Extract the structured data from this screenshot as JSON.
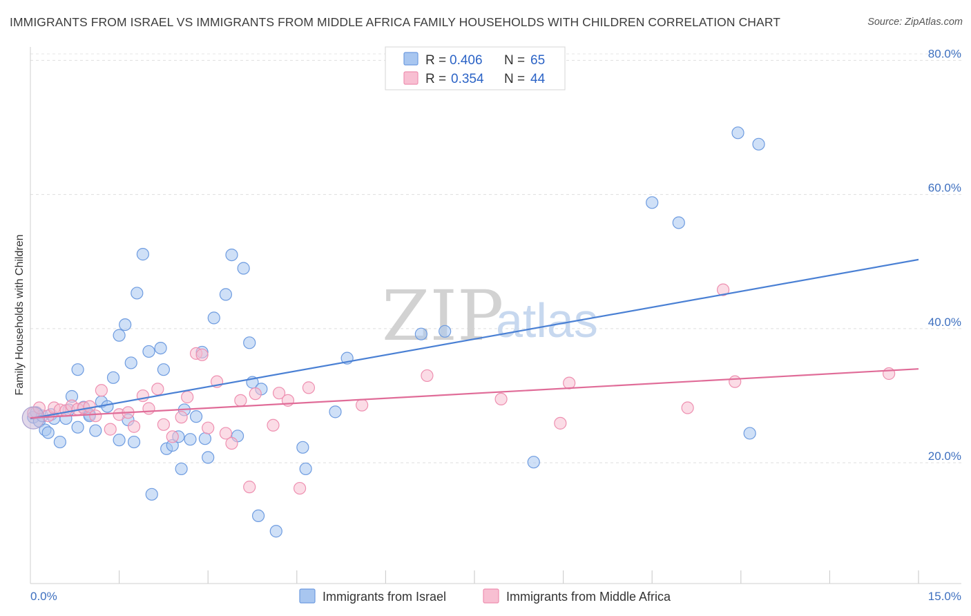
{
  "title": "IMMIGRANTS FROM ISRAEL VS IMMIGRANTS FROM MIDDLE AFRICA FAMILY HOUSEHOLDS WITH CHILDREN CORRELATION CHART",
  "source": "Source: ZipAtlas.com",
  "watermark": {
    "zip": "ZIP",
    "atlas": "atlas"
  },
  "legend": {
    "r_label": "R =",
    "n_label": "N =",
    "rows": [
      {
        "r": "0.406",
        "n": "65",
        "fill": "#a8c6f0",
        "stroke": "#6d9be0"
      },
      {
        "r": "0.354",
        "n": "44",
        "fill": "#f8bfd2",
        "stroke": "#ee8fb0"
      }
    ]
  },
  "chart_data": {
    "type": "scatter",
    "title": "IMMIGRANTS FROM ISRAEL VS IMMIGRANTS FROM MIDDLE AFRICA FAMILY HOUSEHOLDS WITH CHILDREN CORRELATION CHART",
    "xlabel": "",
    "ylabel": "Family Households with Children",
    "xlim": [
      0,
      15
    ],
    "ylim": [
      2,
      82
    ],
    "x_tick_labels": [
      "0.0%",
      "15.0%"
    ],
    "y_ticks": [
      20,
      40,
      60,
      80
    ],
    "y_tick_labels": [
      "20.0%",
      "40.0%",
      "60.0%",
      "80.0%"
    ],
    "series": [
      {
        "name": "Immigrants from Israel",
        "color": "#4a80d4",
        "point_fill": "#a8c6f0",
        "point_stroke": "#6d9be0",
        "trend": [
          [
            0,
            26.6
          ],
          [
            15,
            50.3
          ]
        ],
        "points": [
          [
            0.05,
            26.8
          ],
          [
            0.1,
            27.5
          ],
          [
            0.15,
            26.2
          ],
          [
            0.2,
            27.0
          ],
          [
            0.25,
            24.9
          ],
          [
            0.3,
            24.5
          ],
          [
            0.35,
            27.2
          ],
          [
            0.4,
            26.6
          ],
          [
            0.5,
            23.1
          ],
          [
            0.6,
            26.6
          ],
          [
            0.7,
            29.9
          ],
          [
            0.8,
            25.3
          ],
          [
            0.9,
            28.3
          ],
          [
            1.0,
            27.2
          ],
          [
            1.1,
            24.8
          ],
          [
            1.2,
            29.1
          ],
          [
            1.3,
            28.4
          ],
          [
            1.4,
            32.7
          ],
          [
            1.5,
            23.4
          ],
          [
            1.65,
            26.4
          ],
          [
            1.75,
            23.1
          ],
          [
            1.8,
            45.3
          ],
          [
            1.9,
            51.1
          ],
          [
            2.0,
            36.6
          ],
          [
            2.05,
            15.3
          ],
          [
            2.2,
            37.1
          ],
          [
            2.25,
            33.9
          ],
          [
            2.3,
            22.1
          ],
          [
            2.4,
            22.6
          ],
          [
            2.5,
            23.9
          ],
          [
            2.55,
            19.1
          ],
          [
            2.6,
            27.9
          ],
          [
            2.7,
            23.5
          ],
          [
            2.8,
            26.9
          ],
          [
            2.9,
            36.5
          ],
          [
            2.95,
            23.6
          ],
          [
            3.0,
            20.8
          ],
          [
            3.1,
            41.6
          ],
          [
            3.3,
            45.1
          ],
          [
            3.4,
            51.0
          ],
          [
            3.5,
            24.0
          ],
          [
            3.6,
            49.0
          ],
          [
            3.7,
            37.9
          ],
          [
            3.75,
            32.0
          ],
          [
            3.85,
            12.1
          ],
          [
            3.9,
            31.0
          ],
          [
            4.15,
            9.8
          ],
          [
            4.6,
            22.3
          ],
          [
            4.65,
            19.1
          ],
          [
            5.15,
            27.6
          ],
          [
            5.35,
            35.6
          ],
          [
            6.6,
            39.2
          ],
          [
            7.0,
            39.6
          ],
          [
            8.5,
            20.1
          ],
          [
            10.5,
            58.8
          ],
          [
            10.95,
            55.8
          ],
          [
            11.95,
            69.2
          ],
          [
            12.15,
            24.4
          ],
          [
            12.3,
            67.5
          ],
          [
            0.8,
            33.9
          ],
          [
            1.5,
            39.0
          ],
          [
            1.6,
            40.6
          ],
          [
            1.7,
            34.9
          ],
          [
            0.65,
            27.9
          ],
          [
            1.0,
            27.0
          ]
        ]
      },
      {
        "name": "Immigrants from Middle Africa",
        "color": "#e06c98",
        "point_fill": "#f8bfd2",
        "point_stroke": "#ee8fb0",
        "trend": [
          [
            0,
            26.7
          ],
          [
            15,
            34.0
          ]
        ],
        "points": [
          [
            0.05,
            27.4
          ],
          [
            0.15,
            28.2
          ],
          [
            0.3,
            27.0
          ],
          [
            0.4,
            28.2
          ],
          [
            0.5,
            27.9
          ],
          [
            0.6,
            27.8
          ],
          [
            0.7,
            28.5
          ],
          [
            0.8,
            28.0
          ],
          [
            0.9,
            28.2
          ],
          [
            1.0,
            28.4
          ],
          [
            1.1,
            27.0
          ],
          [
            1.2,
            30.8
          ],
          [
            1.35,
            25.0
          ],
          [
            1.5,
            27.2
          ],
          [
            1.65,
            27.5
          ],
          [
            1.75,
            25.4
          ],
          [
            1.9,
            30.0
          ],
          [
            2.0,
            28.1
          ],
          [
            2.15,
            31.0
          ],
          [
            2.25,
            25.7
          ],
          [
            2.4,
            23.9
          ],
          [
            2.55,
            26.8
          ],
          [
            2.65,
            29.8
          ],
          [
            2.8,
            36.3
          ],
          [
            2.9,
            36.1
          ],
          [
            3.0,
            25.2
          ],
          [
            3.15,
            32.1
          ],
          [
            3.3,
            24.4
          ],
          [
            3.4,
            22.9
          ],
          [
            3.55,
            29.3
          ],
          [
            3.7,
            16.4
          ],
          [
            3.8,
            30.3
          ],
          [
            4.1,
            25.6
          ],
          [
            4.2,
            30.4
          ],
          [
            4.35,
            29.3
          ],
          [
            4.55,
            16.2
          ],
          [
            4.7,
            31.2
          ],
          [
            5.6,
            28.6
          ],
          [
            6.7,
            33.0
          ],
          [
            7.95,
            29.5
          ],
          [
            8.95,
            25.9
          ],
          [
            9.1,
            31.9
          ],
          [
            11.1,
            28.2
          ],
          [
            11.9,
            32.1
          ]
        ],
        "extra_points": [
          [
            11.7,
            45.8
          ],
          [
            14.5,
            33.3
          ]
        ]
      }
    ]
  },
  "bottom_legend": [
    {
      "label": "Immigrants from Israel"
    },
    {
      "label": "Immigrants from Middle Africa"
    }
  ]
}
